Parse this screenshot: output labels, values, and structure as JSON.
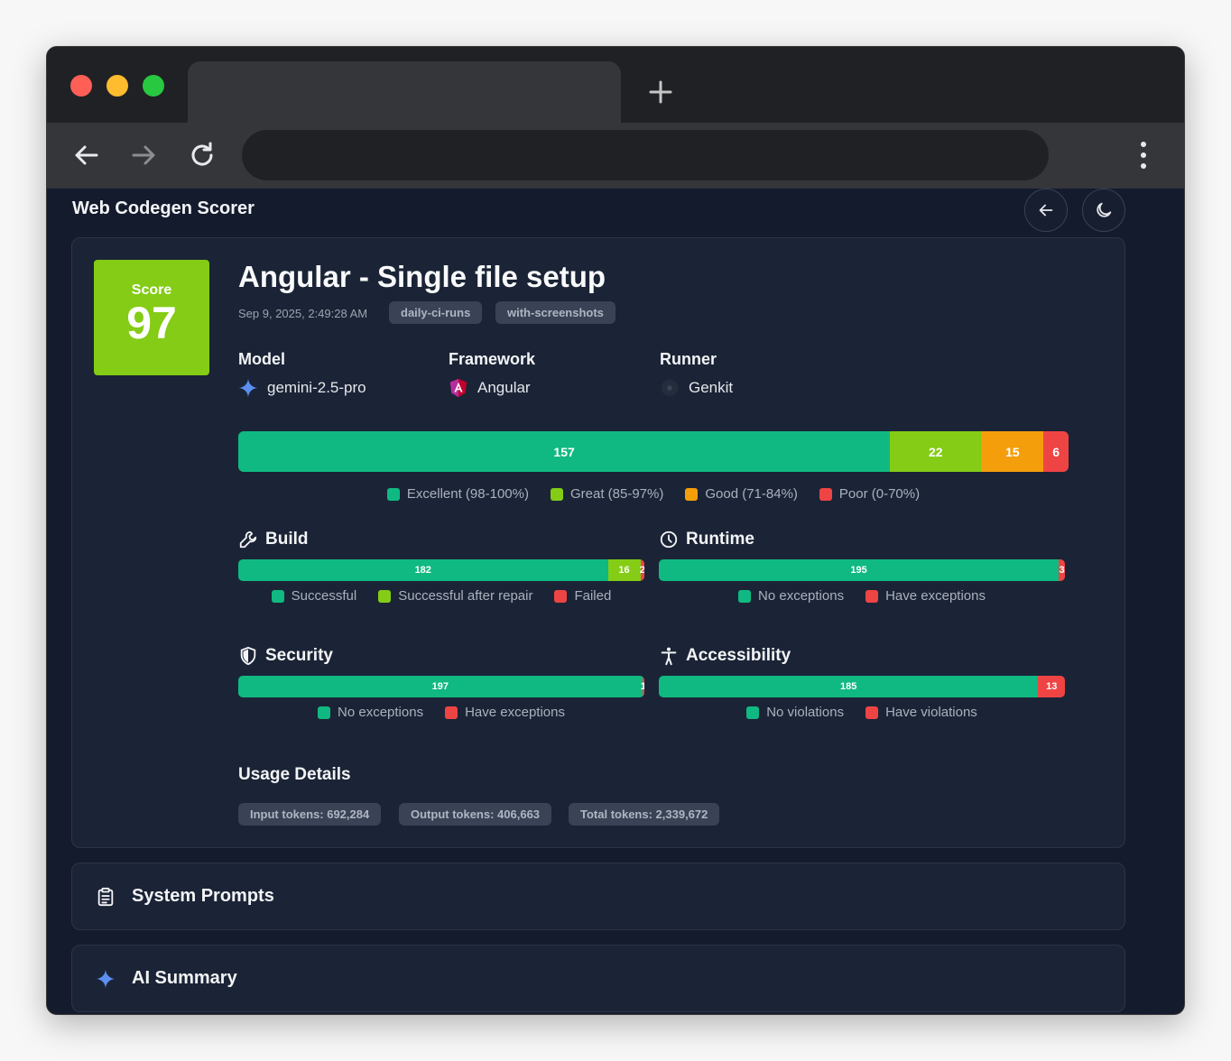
{
  "app": {
    "title": "Web Codegen Scorer"
  },
  "run": {
    "title": "Angular - Single file setup",
    "date": "Sep 9, 2025, 2:49:28 AM",
    "tags": [
      "daily-ci-runs",
      "with-screenshots"
    ],
    "score_label": "Score",
    "score": "97",
    "score_color": "#84cc16"
  },
  "info": {
    "model_label": "Model",
    "model": "gemini-2.5-pro",
    "framework_label": "Framework",
    "framework": "Angular",
    "runner_label": "Runner",
    "runner": "Genkit"
  },
  "distribution": {
    "segments": [
      {
        "value": 157,
        "label": "157",
        "color": "#10b981"
      },
      {
        "value": 22,
        "label": "22",
        "color": "#84cc16"
      },
      {
        "value": 15,
        "label": "15",
        "color": "#f59e0b"
      },
      {
        "value": 6,
        "label": "6",
        "color": "#ef4444"
      }
    ],
    "legend": [
      "Excellent (98-100%)",
      "Great (85-97%)",
      "Good (71-84%)",
      "Poor (0-70%)"
    ]
  },
  "build": {
    "title": "Build",
    "segments": [
      {
        "value": 182,
        "label": "182",
        "color": "#10b981"
      },
      {
        "value": 16,
        "label": "16",
        "color": "#84cc16"
      },
      {
        "value": 2,
        "label": "2",
        "color": "#ef4444"
      }
    ],
    "legend": [
      "Successful",
      "Successful after repair",
      "Failed"
    ]
  },
  "runtime": {
    "title": "Runtime",
    "segments": [
      {
        "value": 195,
        "label": "195",
        "color": "#10b981"
      },
      {
        "value": 3,
        "label": "3",
        "color": "#ef4444"
      }
    ],
    "legend": [
      "No exceptions",
      "Have exceptions"
    ]
  },
  "security": {
    "title": "Security",
    "segments": [
      {
        "value": 197,
        "label": "197",
        "color": "#10b981"
      },
      {
        "value": 1,
        "label": "1",
        "color": "#ef4444"
      }
    ],
    "legend": [
      "No exceptions",
      "Have exceptions"
    ]
  },
  "accessibility": {
    "title": "Accessibility",
    "segments": [
      {
        "value": 185,
        "label": "185",
        "color": "#10b981"
      },
      {
        "value": 13,
        "label": "13",
        "color": "#ef4444"
      }
    ],
    "legend": [
      "No violations",
      "Have violations"
    ]
  },
  "usage": {
    "title": "Usage Details",
    "input": "Input tokens: 692,284",
    "output": "Output tokens: 406,663",
    "total": "Total tokens: 2,339,672"
  },
  "sections": {
    "system_prompts": "System Prompts",
    "ai_summary": "AI Summary"
  }
}
